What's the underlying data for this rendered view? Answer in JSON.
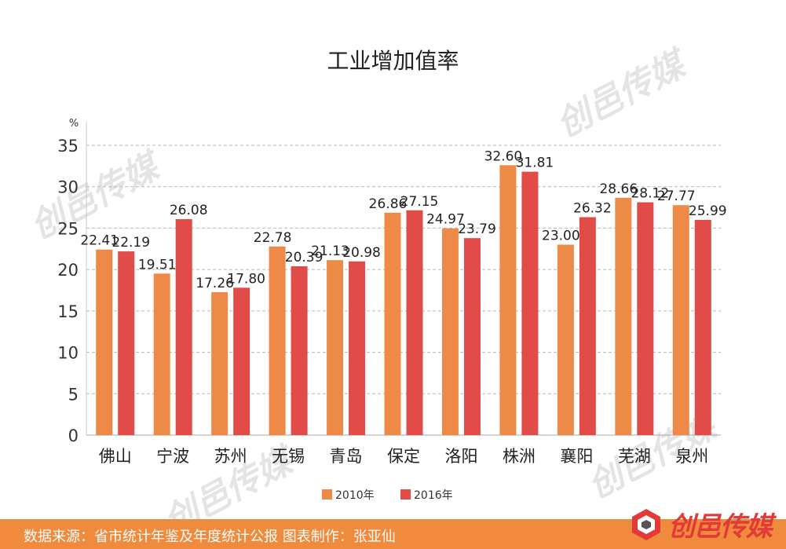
{
  "chart_data": {
    "type": "bar",
    "title": "工业增加值率",
    "ylabel": "%",
    "xlabel": "",
    "ylim": [
      0,
      35
    ],
    "yticks": [
      0,
      5,
      10,
      15,
      20,
      25,
      30,
      35
    ],
    "categories": [
      "佛山",
      "宁波",
      "苏州",
      "无锡",
      "青岛",
      "保定",
      "洛阳",
      "株洲",
      "襄阳",
      "芜湖",
      "泉州"
    ],
    "series": [
      {
        "name": "2010年",
        "color": "#ee8a47",
        "values": [
          22.41,
          19.51,
          17.26,
          22.78,
          21.13,
          26.86,
          24.97,
          32.6,
          23.0,
          28.66,
          27.77
        ]
      },
      {
        "name": "2016年",
        "color": "#e14b48",
        "values": [
          22.19,
          26.08,
          17.8,
          20.39,
          20.98,
          27.15,
          23.79,
          31.81,
          26.32,
          28.12,
          25.99
        ]
      }
    ],
    "grid": true,
    "legend": "bottom-center"
  },
  "footer": {
    "source": "数据来源：省市统计年鉴及年度统计公报  图表制作：张亚仙"
  },
  "brand": {
    "name": "创邑传媒",
    "icon": "brand-logo-icon"
  },
  "colors": {
    "footer_bg": "#f08a3c",
    "brand": "#e33a38",
    "grid": "#b9b9b9"
  }
}
